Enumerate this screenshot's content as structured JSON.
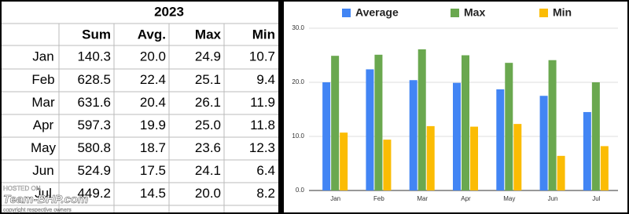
{
  "table": {
    "title": "2023",
    "columns": [
      "Sum",
      "Avg.",
      "Max",
      "Min"
    ],
    "rows": [
      {
        "label": "Jan",
        "cells": [
          "140.3",
          "20.0",
          "24.9",
          "10.7"
        ]
      },
      {
        "label": "Feb",
        "cells": [
          "628.5",
          "22.4",
          "25.1",
          "9.4"
        ]
      },
      {
        "label": "Mar",
        "cells": [
          "631.6",
          "20.4",
          "26.1",
          "11.9"
        ]
      },
      {
        "label": "Apr",
        "cells": [
          "597.3",
          "19.9",
          "25.0",
          "11.8"
        ]
      },
      {
        "label": "May",
        "cells": [
          "580.8",
          "18.7",
          "23.6",
          "12.3"
        ]
      },
      {
        "label": "Jun",
        "cells": [
          "524.9",
          "17.5",
          "24.1",
          "6.4"
        ]
      },
      {
        "label": "Jul",
        "cells": [
          "449.2",
          "14.5",
          "20.0",
          "8.2"
        ]
      }
    ]
  },
  "chart_data": {
    "type": "bar",
    "categories": [
      "Jan",
      "Feb",
      "Mar",
      "Apr",
      "May",
      "Jun",
      "Jul"
    ],
    "series": [
      {
        "name": "Average",
        "color": "#4285f4",
        "values": [
          20.0,
          22.4,
          20.4,
          19.9,
          18.7,
          17.5,
          14.5
        ]
      },
      {
        "name": "Max",
        "color": "#6aa84f",
        "values": [
          24.9,
          25.1,
          26.1,
          25.0,
          23.6,
          24.1,
          20.0
        ]
      },
      {
        "name": "Min",
        "color": "#fbbc04",
        "values": [
          10.7,
          9.4,
          11.9,
          11.8,
          12.3,
          6.4,
          8.2
        ]
      }
    ],
    "ylim": [
      0,
      30
    ],
    "yticks": [
      {
        "value": 0,
        "label": "0.0"
      },
      {
        "value": 10,
        "label": "10.0"
      },
      {
        "value": 20,
        "label": "20.0"
      },
      {
        "value": 30,
        "label": "30.0"
      }
    ],
    "grid": true,
    "legend": "top"
  },
  "watermark": {
    "line1": "HOSTED ON",
    "line2": "Team-BHP.com",
    "line3": "copyright respective owners"
  }
}
